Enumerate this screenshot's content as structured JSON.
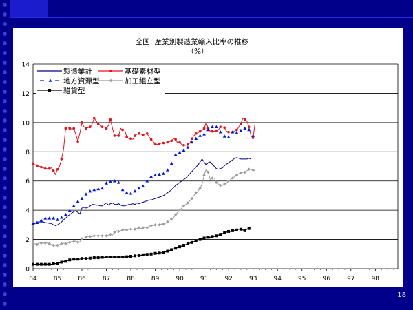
{
  "slide": {
    "page_number": "18"
  },
  "chart_data": {
    "type": "line",
    "title": "全国: 産業別製造業輸入比率の推移",
    "subtitle": "（%）",
    "xlabel": "",
    "ylabel": "",
    "xlim": [
      84,
      98.92
    ],
    "ylim": [
      0,
      14
    ],
    "x_ticks": [
      "84",
      "85",
      "86",
      "87",
      "88",
      "89",
      "90",
      "91",
      "92",
      "93",
      "94",
      "95",
      "96",
      "97",
      "98"
    ],
    "y_ticks": [
      "0",
      "2",
      "4",
      "6",
      "8",
      "10",
      "12",
      "14"
    ],
    "grid": "horizontal",
    "legend_position": "top-left",
    "x_start": 84,
    "x_step": 0.0833,
    "series": [
      {
        "name": "製造業計",
        "color": "#00008a",
        "marker": "none",
        "dash": "solid",
        "values": [
          3.0,
          3.1,
          3.2,
          3.2,
          3.2,
          3.2,
          3.15,
          3.15,
          3.1,
          3.1,
          3.0,
          2.95,
          3.0,
          3.1,
          3.2,
          3.35,
          3.45,
          3.6,
          3.7,
          3.8,
          3.9,
          3.95,
          3.85,
          3.75,
          4.15,
          4.2,
          4.15,
          4.2,
          4.3,
          4.4,
          4.4,
          4.35,
          4.35,
          4.3,
          4.3,
          4.4,
          4.5,
          4.35,
          4.45,
          4.5,
          4.4,
          4.4,
          4.45,
          4.35,
          4.3,
          4.3,
          4.35,
          4.4,
          4.4,
          4.45,
          4.4,
          4.5,
          4.45,
          4.5,
          4.55,
          4.6,
          4.65,
          4.7,
          4.7,
          4.75,
          4.8,
          4.85,
          4.9,
          4.95,
          5.0,
          5.1,
          5.2,
          5.3,
          5.4,
          5.55,
          5.7,
          5.8,
          5.9,
          6.0,
          6.1,
          6.2,
          6.35,
          6.5,
          6.65,
          6.8,
          6.95,
          7.1,
          7.3,
          7.5,
          7.3,
          7.1,
          7.25,
          7.3,
          7.15,
          7.0,
          6.85,
          6.8,
          6.85,
          6.9,
          7.05,
          7.15,
          7.25,
          7.35,
          7.45,
          7.55,
          7.6,
          7.55,
          7.5,
          7.5,
          7.5,
          7.5,
          7.55,
          7.5
        ]
      },
      {
        "name": "基礎素材型",
        "color": "#e0141e",
        "marker": "circle",
        "dash": "solid",
        "values": [
          7.2,
          7.1,
          7.05,
          7.0,
          6.95,
          6.9,
          6.85,
          6.85,
          6.85,
          6.9,
          6.7,
          6.45,
          6.8,
          7.0,
          7.5,
          8.2,
          9.6,
          9.7,
          9.6,
          9.55,
          9.6,
          9.2,
          8.7,
          9.3,
          10.0,
          9.7,
          9.6,
          9.65,
          9.7,
          9.9,
          10.3,
          10.1,
          9.9,
          9.8,
          9.7,
          9.7,
          9.6,
          9.8,
          10.2,
          9.6,
          9.1,
          9.1,
          9.1,
          9.6,
          9.5,
          9.5,
          9.0,
          8.9,
          8.9,
          8.85,
          9.1,
          9.2,
          9.25,
          9.2,
          9.15,
          9.2,
          9.25,
          9.0,
          8.85,
          8.7,
          8.55,
          8.5,
          8.55,
          8.6,
          8.6,
          8.6,
          8.65,
          8.7,
          8.75,
          8.9,
          8.85,
          8.6,
          8.65,
          8.5,
          8.45,
          8.45,
          8.5,
          8.6,
          8.9,
          9.1,
          9.25,
          9.3,
          9.4,
          9.45,
          9.6,
          10.0,
          9.6,
          9.4,
          9.4,
          9.4,
          9.45,
          9.5,
          9.7,
          9.7,
          9.65,
          9.4,
          9.35,
          9.35,
          9.35,
          9.4,
          9.5,
          9.7,
          9.9,
          10.3,
          10.2,
          10.1,
          9.7,
          9.1,
          8.95,
          9.9
        ]
      },
      {
        "name": "地方資源型",
        "color": "#0018d6",
        "marker": "triangle",
        "dash": "dashed",
        "values": [
          3.1,
          3.1,
          3.15,
          3.2,
          3.3,
          3.4,
          3.45,
          3.45,
          3.45,
          3.45,
          3.45,
          3.4,
          3.35,
          3.4,
          3.5,
          3.6,
          3.7,
          3.8,
          3.95,
          4.1,
          4.3,
          4.5,
          4.6,
          4.75,
          4.8,
          4.95,
          5.1,
          5.25,
          5.3,
          5.3,
          5.4,
          5.45,
          5.45,
          5.5,
          5.5,
          5.5,
          5.85,
          5.9,
          5.95,
          5.9,
          6.0,
          6.0,
          5.9,
          5.6,
          5.4,
          5.25,
          5.2,
          5.1,
          5.15,
          5.2,
          5.3,
          5.4,
          5.5,
          5.55,
          5.65,
          5.8,
          6.0,
          6.2,
          6.3,
          6.35,
          6.4,
          6.4,
          6.45,
          6.45,
          6.5,
          6.6,
          6.75,
          6.9,
          7.2,
          7.5,
          7.8,
          7.9,
          7.95,
          8.05,
          8.1,
          8.2,
          8.3,
          8.5,
          8.65,
          8.7,
          8.9,
          9.0,
          9.1,
          9.1,
          9.2,
          9.3,
          9.5,
          9.55,
          9.7,
          9.7,
          9.7,
          9.5,
          9.35,
          9.15,
          9.05,
          8.9,
          9.0,
          9.2,
          9.35,
          9.35,
          9.3,
          9.4,
          9.45,
          9.5,
          9.6,
          9.55,
          9.5,
          9.35,
          9.1,
          8.75
        ]
      },
      {
        "name": "加工組立型",
        "color": "#9a9a9a",
        "marker": "diamond",
        "dash": "solid",
        "values": [
          1.7,
          1.7,
          1.65,
          1.8,
          1.75,
          1.75,
          1.75,
          1.8,
          1.7,
          1.65,
          1.6,
          1.6,
          1.6,
          1.65,
          1.7,
          1.75,
          1.7,
          1.75,
          1.8,
          1.85,
          1.85,
          1.9,
          1.8,
          1.85,
          2.05,
          2.1,
          2.15,
          2.2,
          2.2,
          2.2,
          2.25,
          2.25,
          2.25,
          2.25,
          2.25,
          2.25,
          2.25,
          2.3,
          2.35,
          2.3,
          2.5,
          2.6,
          2.55,
          2.6,
          2.65,
          2.65,
          2.65,
          2.7,
          2.7,
          2.7,
          2.7,
          2.75,
          2.8,
          2.75,
          2.8,
          2.85,
          2.8,
          2.9,
          2.95,
          2.95,
          3.0,
          3.0,
          3.0,
          3.05,
          3.05,
          3.1,
          3.2,
          3.3,
          3.4,
          3.5,
          3.7,
          3.85,
          4.0,
          4.15,
          4.3,
          4.4,
          4.5,
          4.65,
          4.8,
          5.0,
          5.2,
          5.3,
          5.5,
          5.8,
          6.4,
          6.8,
          6.6,
          6.1,
          6.2,
          6.2,
          5.9,
          5.8,
          5.7,
          5.7,
          5.8,
          5.85,
          6.0,
          6.1,
          6.2,
          6.3,
          6.4,
          6.5,
          6.55,
          6.6,
          6.6,
          6.7,
          6.8,
          6.8,
          6.75,
          6.7
        ]
      },
      {
        "name": "雑貨型",
        "color": "#000000",
        "marker": "square",
        "dash": "solid",
        "values": [
          0.3,
          0.3,
          0.3,
          0.3,
          0.3,
          0.3,
          0.3,
          0.3,
          0.3,
          0.3,
          0.35,
          0.35,
          0.35,
          0.4,
          0.45,
          0.5,
          0.5,
          0.55,
          0.6,
          0.6,
          0.65,
          0.65,
          0.65,
          0.65,
          0.7,
          0.7,
          0.7,
          0.7,
          0.72,
          0.72,
          0.75,
          0.75,
          0.75,
          0.75,
          0.78,
          0.78,
          0.8,
          0.8,
          0.8,
          0.8,
          0.8,
          0.8,
          0.8,
          0.8,
          0.8,
          0.8,
          0.82,
          0.82,
          0.85,
          0.85,
          0.88,
          0.88,
          0.9,
          0.92,
          0.95,
          0.95,
          0.98,
          1.0,
          1.0,
          1.02,
          1.05,
          1.05,
          1.07,
          1.1,
          1.1,
          1.15,
          1.2,
          1.25,
          1.3,
          1.35,
          1.4,
          1.45,
          1.5,
          1.55,
          1.6,
          1.65,
          1.7,
          1.75,
          1.8,
          1.85,
          1.9,
          1.95,
          2.0,
          2.05,
          2.1,
          2.1,
          2.15,
          2.15,
          2.2,
          2.2,
          2.25,
          2.3,
          2.35,
          2.4,
          2.45,
          2.5,
          2.55,
          2.55,
          2.6,
          2.6,
          2.65,
          2.7,
          2.7,
          2.65,
          2.6,
          2.7,
          2.75,
          2.8
        ]
      }
    ]
  }
}
